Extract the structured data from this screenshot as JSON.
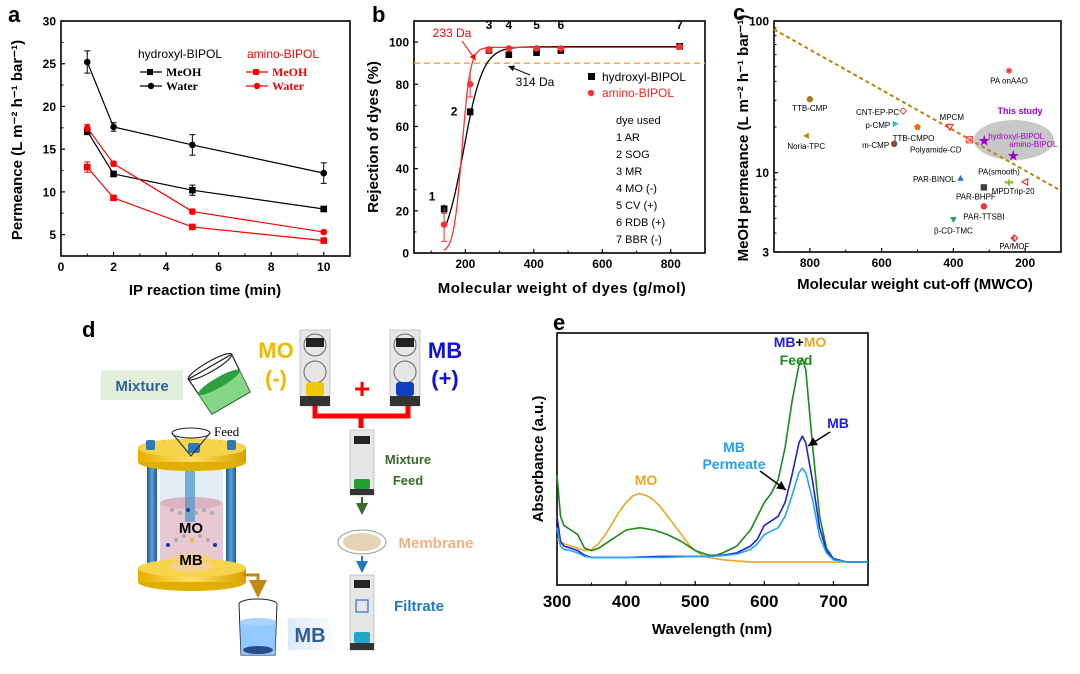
{
  "figure": {
    "panels": [
      "a",
      "b",
      "c",
      "d",
      "e"
    ]
  },
  "chart_data": [
    {
      "id": "a",
      "type": "line",
      "title": "",
      "xlabel": "IP reaction time (min)",
      "ylabel": "Permeance (L m⁻² h⁻¹ bar⁻¹)",
      "xlim": [
        0,
        11
      ],
      "ylim": [
        2.5,
        30
      ],
      "xticks": [
        0,
        2,
        4,
        6,
        8,
        10
      ],
      "yticks": [
        5,
        10,
        15,
        20,
        25,
        30
      ],
      "grid": false,
      "legend": {
        "placement": "top-right",
        "groups": [
          {
            "title": "hydroxyl-BIPOL",
            "color": "#000000",
            "entries": [
              "MeOH",
              "Water"
            ]
          },
          {
            "title": "amino-BIPOL",
            "color": "#ff0000",
            "entries": [
              "MeOH",
              "Water"
            ]
          }
        ]
      },
      "x": [
        1,
        2,
        5,
        10
      ],
      "series": [
        {
          "name": "hydroxyl-BIPOL MeOH",
          "color": "#000000",
          "marker": "square",
          "values": [
            17.1,
            12.1,
            10.2,
            8.0
          ],
          "errors": [
            0.4,
            0.3,
            0.6,
            0.3
          ]
        },
        {
          "name": "hydroxyl-BIPOL Water",
          "color": "#000000",
          "marker": "circle",
          "values": [
            25.2,
            17.6,
            15.5,
            12.2
          ],
          "errors": [
            1.3,
            0.5,
            1.2,
            1.2
          ]
        },
        {
          "name": "amino-BIPOL MeOH",
          "color": "#ff0000",
          "marker": "square",
          "values": [
            12.9,
            9.3,
            5.9,
            4.3
          ],
          "errors": [
            0.6,
            0.2,
            0.2,
            0.2
          ]
        },
        {
          "name": "amino-BIPOL Water",
          "color": "#ff0000",
          "marker": "circle",
          "values": [
            17.5,
            13.3,
            7.7,
            5.3
          ],
          "errors": [
            0.4,
            0.3,
            0.3,
            0.2
          ]
        }
      ]
    },
    {
      "id": "b",
      "type": "scatter",
      "title": "",
      "xlabel": "Molecular weight of dyes (g/mol)",
      "ylabel": "Rejection of dyes (%)",
      "xlim": [
        50,
        900
      ],
      "ylim": [
        0,
        110
      ],
      "xticks": [
        200,
        400,
        600,
        800
      ],
      "yticks": [
        0,
        20,
        40,
        60,
        80,
        100
      ],
      "grid": false,
      "legend": {
        "placement": "right",
        "entries": [
          "hydroxyl-BIPOL",
          "amino-BIPOL"
        ]
      },
      "threshold": {
        "value": 90,
        "color": "#f0a040",
        "style": "dashed"
      },
      "annotations": [
        {
          "text": "233 Da",
          "color": "#ff0000",
          "x": 233,
          "y": 90
        },
        {
          "text": "314 Da",
          "color": "#000000",
          "x": 314,
          "y": 90
        }
      ],
      "point_labels": [
        "1",
        "2",
        "3",
        "4",
        "5",
        "6",
        "7"
      ],
      "x": [
        138,
        214,
        269,
        327,
        408,
        479,
        826
      ],
      "series": [
        {
          "name": "hydroxyl-BIPOL",
          "color": "#000000",
          "marker": "square",
          "values": [
            21,
            67,
            96,
            94,
            95,
            96,
            98
          ],
          "errors": [
            2,
            1.5,
            1,
            1,
            0.5,
            0.5,
            0.5
          ]
        },
        {
          "name": "amino-BIPOL",
          "color": "#ff3030",
          "marker": "circle",
          "values": [
            13.5,
            80,
            96.5,
            97,
            97,
            97,
            97.8
          ],
          "errors": [
            8,
            6,
            1.5,
            0.5,
            0.5,
            0.5,
            0.5
          ]
        }
      ],
      "dye_list": {
        "title": "dye used",
        "items": [
          "1 AR",
          "2 SOG",
          "3 MR",
          "4 MO (-)",
          "5 CV (+)",
          "6 RDB (+)",
          "7 BBR (-)"
        ]
      }
    },
    {
      "id": "c",
      "type": "scatter",
      "title": "",
      "xlabel": "Molecular weight cut-off (MWCO)",
      "ylabel": "MeOH permeance (L m⁻² h⁻¹ bar⁻¹)",
      "xlim": [
        900,
        100
      ],
      "ylim": [
        3,
        100
      ],
      "yscale": "log",
      "xticks": [
        800,
        600,
        400,
        200
      ],
      "yticks": [
        3,
        10,
        100
      ],
      "grid": false,
      "trend_line": {
        "from": [
          900,
          88
        ],
        "to": [
          100,
          7.6
        ],
        "color": "#b8860b",
        "style": "dashed"
      },
      "highlight": {
        "label": "This study",
        "color": "#c0c0c0",
        "label_color": "#9900cc"
      },
      "points": [
        {
          "label": "PA onAAO",
          "x": 245,
          "y": 47,
          "color": "#ff3030",
          "marker": "asterisk"
        },
        {
          "label": "TTB-CMP",
          "x": 800,
          "y": 30.5,
          "color": "#a08020",
          "marker": "circle"
        },
        {
          "label": "CNT-EP-PC",
          "x": 540,
          "y": 25.5,
          "color": "#ff6060",
          "marker": "diamond-open"
        },
        {
          "label": "p-CMP",
          "x": 562,
          "y": 21,
          "color": "#20c0c0",
          "marker": "triangle-right"
        },
        {
          "label": "TTB-CMPO",
          "x": 500,
          "y": 20,
          "color": "#ff6a00",
          "marker": "pentagon"
        },
        {
          "label": "MPCM",
          "x": 410,
          "y": 20,
          "color": "#ff3030",
          "marker": "triangle-down-open"
        },
        {
          "label": "Noria-TPC",
          "x": 810,
          "y": 17.5,
          "color": "#c08a00",
          "marker": "triangle-left"
        },
        {
          "label": "m-CMP",
          "x": 565,
          "y": 15.5,
          "color": "#805040",
          "marker": "circle"
        },
        {
          "label": "Polyamide-CD",
          "x": 355,
          "y": 16.5,
          "color": "#ff5050",
          "marker": "cross-box"
        },
        {
          "label": "hydroxyl-BIPOL",
          "x": 314,
          "y": 16.2,
          "color": "#9900cc",
          "marker": "star",
          "this_study": true
        },
        {
          "label": "amino-BIPOL",
          "x": 233,
          "y": 12.9,
          "color": "#9900cc",
          "marker": "star",
          "this_study": true
        },
        {
          "label": "PAR-BINOL",
          "x": 380,
          "y": 9.2,
          "color": "#2070d0",
          "marker": "triangle-up"
        },
        {
          "label": "PA(smooth)",
          "x": 245,
          "y": 8.6,
          "color": "#80c020",
          "marker": "cactus"
        },
        {
          "label": "MPDTrip-20",
          "x": 200,
          "y": 8.7,
          "color": "#ff3030",
          "marker": "triangle-left-open"
        },
        {
          "label": "PAR-BHPF",
          "x": 315,
          "y": 8.0,
          "color": "#404040",
          "marker": "square"
        },
        {
          "label": "PAR-TTSBI",
          "x": 315,
          "y": 6.0,
          "color": "#ff3030",
          "marker": "circle"
        },
        {
          "label": "β-CD-TMC",
          "x": 400,
          "y": 4.9,
          "color": "#20a050",
          "marker": "triangle-down"
        },
        {
          "label": "PA/MOF",
          "x": 230,
          "y": 3.7,
          "color": "#ff3030",
          "marker": "diamond-half"
        }
      ]
    },
    {
      "id": "e",
      "type": "line",
      "title": "",
      "xlabel": "Wavelength (nm)",
      "ylabel": "Absorbance (a.u.)",
      "xlim": [
        300,
        750
      ],
      "ylim": [
        -0.1,
        1.0
      ],
      "xticks": [
        300,
        400,
        500,
        600,
        700
      ],
      "yticks": [],
      "grid": false,
      "annotations": [
        {
          "text": "MO",
          "color": "#e8a820"
        },
        {
          "text": "MB",
          "color": "#2020e0"
        },
        {
          "text": "MB Permeate",
          "color": "#20a0f0"
        },
        {
          "text": "MB+MO Feed",
          "color": "#1a8a1a"
        }
      ],
      "series": [
        {
          "name": "MO",
          "color": "#e8a820",
          "x": [
            300,
            310,
            320,
            330,
            340,
            350,
            360,
            370,
            380,
            390,
            400,
            410,
            420,
            430,
            440,
            450,
            460,
            470,
            480,
            490,
            500,
            510,
            520,
            530,
            540,
            560,
            580,
            600,
            650,
            700,
            750
          ],
          "values": [
            0.1,
            0.08,
            0.07,
            0.06,
            0.05,
            0.055,
            0.08,
            0.12,
            0.17,
            0.22,
            0.26,
            0.29,
            0.3,
            0.29,
            0.27,
            0.24,
            0.2,
            0.16,
            0.12,
            0.08,
            0.05,
            0.03,
            0.02,
            0.015,
            0.01,
            0.005,
            0.0,
            0.0,
            0.0,
            0.0,
            0.0
          ]
        },
        {
          "name": "MB+MO Feed",
          "color": "#1a8a1a",
          "x": [
            300,
            305,
            310,
            320,
            330,
            340,
            350,
            360,
            380,
            400,
            420,
            440,
            460,
            480,
            500,
            520,
            530,
            540,
            560,
            580,
            600,
            610,
            620,
            630,
            640,
            650,
            655,
            660,
            670,
            680,
            690,
            700,
            720,
            750
          ],
          "values": [
            0.38,
            0.2,
            0.16,
            0.14,
            0.12,
            0.06,
            0.05,
            0.06,
            0.1,
            0.14,
            0.15,
            0.14,
            0.12,
            0.09,
            0.05,
            0.03,
            0.03,
            0.04,
            0.07,
            0.14,
            0.26,
            0.3,
            0.36,
            0.5,
            0.7,
            0.86,
            0.89,
            0.84,
            0.5,
            0.2,
            0.06,
            0.015,
            0.0,
            0.0
          ]
        },
        {
          "name": "MB",
          "color": "#2020e0",
          "x": [
            300,
            305,
            310,
            320,
            330,
            340,
            350,
            400,
            450,
            500,
            520,
            540,
            560,
            580,
            590,
            600,
            610,
            620,
            630,
            640,
            650,
            655,
            660,
            670,
            680,
            690,
            700,
            720,
            750
          ],
          "values": [
            0.2,
            0.09,
            0.07,
            0.06,
            0.05,
            0.03,
            0.02,
            0.02,
            0.025,
            0.025,
            0.025,
            0.03,
            0.04,
            0.07,
            0.1,
            0.16,
            0.18,
            0.2,
            0.26,
            0.38,
            0.52,
            0.55,
            0.52,
            0.35,
            0.15,
            0.05,
            0.015,
            0.0,
            0.0
          ]
        },
        {
          "name": "MB Permeate",
          "color": "#20a8f0",
          "x": [
            300,
            305,
            310,
            320,
            330,
            340,
            350,
            400,
            450,
            500,
            520,
            540,
            560,
            580,
            590,
            600,
            610,
            620,
            630,
            640,
            650,
            655,
            660,
            670,
            680,
            690,
            700,
            720,
            750
          ],
          "values": [
            0.15,
            0.07,
            0.055,
            0.05,
            0.04,
            0.025,
            0.02,
            0.02,
            0.02,
            0.025,
            0.025,
            0.028,
            0.035,
            0.055,
            0.08,
            0.12,
            0.135,
            0.15,
            0.2,
            0.29,
            0.39,
            0.41,
            0.39,
            0.27,
            0.11,
            0.04,
            0.01,
            0.0,
            0.0
          ]
        }
      ]
    }
  ],
  "panel_a": {
    "legend_title_hydroxyl": "hydroxyl-BIPOL",
    "legend_title_amino": "amino-BIPOL",
    "legend_meoh": "MeOH",
    "legend_water": "Water"
  },
  "panel_b": {
    "legend_hydroxyl": "hydroxyl-BIPOL",
    "legend_amino": "amino-BIPOL"
  },
  "panel_c": {
    "this_study": "This study"
  },
  "panel_d": {
    "mo_label": "MO",
    "mo_charge": "(-)",
    "mb_label": "MB",
    "mb_charge": "(+)",
    "plus_sign": "+",
    "mixture_label": "Mixture",
    "feed_label": "Feed",
    "mixture_feed_line1": "Mixture",
    "mixture_feed_line2": "Feed",
    "membrane_label": "Membrane",
    "filtrate_label": "Filtrate",
    "cell_mo": "MO",
    "cell_mb": "MB",
    "beaker_mb": "MB",
    "colors": {
      "mo": "#f5b800",
      "mb": "#1010e0",
      "mixture": "#3a6a2a",
      "membrane": "#f4b183",
      "filtrate": "#1f78c8",
      "cell_gold": "#f2c21a",
      "rod_blue": "#2f79b8"
    }
  },
  "panel_e": {
    "label_mo": "MO",
    "label_mb": "MB",
    "label_mb_perm1": "MB",
    "label_mb_perm2": "Permeate",
    "label_feed_mb": "MB",
    "label_feed_plus": "+",
    "label_feed_mo": "MO",
    "label_feed": "Feed"
  }
}
